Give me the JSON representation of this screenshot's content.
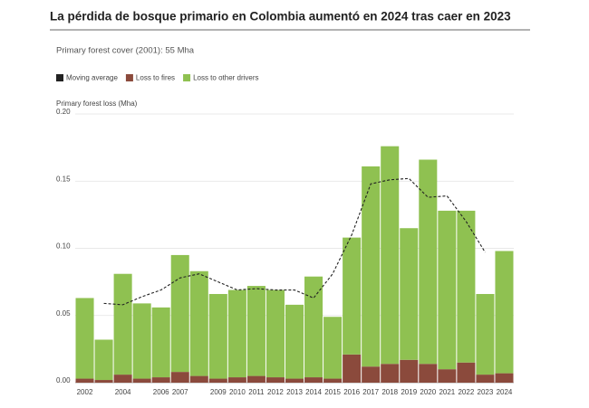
{
  "chart_data": {
    "type": "stacked_bar",
    "title": "La pérdida de bosque primario en Colombia aumentó en 2024 tras caer en 2023",
    "subtitle": "Primary forest cover (2001): 55 Mha",
    "y_label": "Primary forest loss (Mha)",
    "categories": [
      "2002",
      null,
      "2004",
      null,
      "2006",
      "2007",
      null,
      "2009",
      "2010",
      "2011",
      "2012",
      "2013",
      "2014",
      "2015",
      "2016",
      "2017",
      "2018",
      "2019",
      "2020",
      "2021",
      "2022",
      "2023",
      "2024"
    ],
    "series": [
      {
        "name": "Loss to fires",
        "color": "#8b4a3c",
        "values": [
          0.003,
          0.002,
          0.006,
          0.003,
          0.004,
          0.008,
          0.005,
          0.003,
          0.004,
          0.005,
          0.004,
          0.003,
          0.004,
          0.003,
          0.021,
          0.012,
          0.014,
          0.017,
          0.014,
          0.01,
          0.015,
          0.006,
          0.007
        ]
      },
      {
        "name": "Loss to other drivers",
        "color": "#8fc151",
        "values": [
          0.06,
          0.03,
          0.075,
          0.056,
          0.052,
          0.087,
          0.078,
          0.063,
          0.065,
          0.067,
          0.065,
          0.055,
          0.075,
          0.046,
          0.087,
          0.149,
          0.162,
          0.098,
          0.152,
          0.118,
          0.113,
          0.06,
          0.091
        ]
      }
    ],
    "moving_average": {
      "name": "Moving average",
      "color": "#222222",
      "values": [
        null,
        0.059,
        0.058,
        0.064,
        0.069,
        0.078,
        0.081,
        0.075,
        0.069,
        0.07,
        0.069,
        0.069,
        0.063,
        0.081,
        0.11,
        0.148,
        0.151,
        0.152,
        0.138,
        0.139,
        0.12,
        0.097,
        null
      ]
    },
    "ylim": [
      0,
      0.2
    ],
    "yticks": [
      {
        "value": 0,
        "label": "0.00"
      },
      {
        "value": 0.05,
        "label": "0.05"
      },
      {
        "value": 0.1,
        "label": "0.10"
      },
      {
        "value": 0.15,
        "label": "0.15"
      },
      {
        "value": 0.2,
        "label": "0.20"
      }
    ],
    "grid": true
  }
}
